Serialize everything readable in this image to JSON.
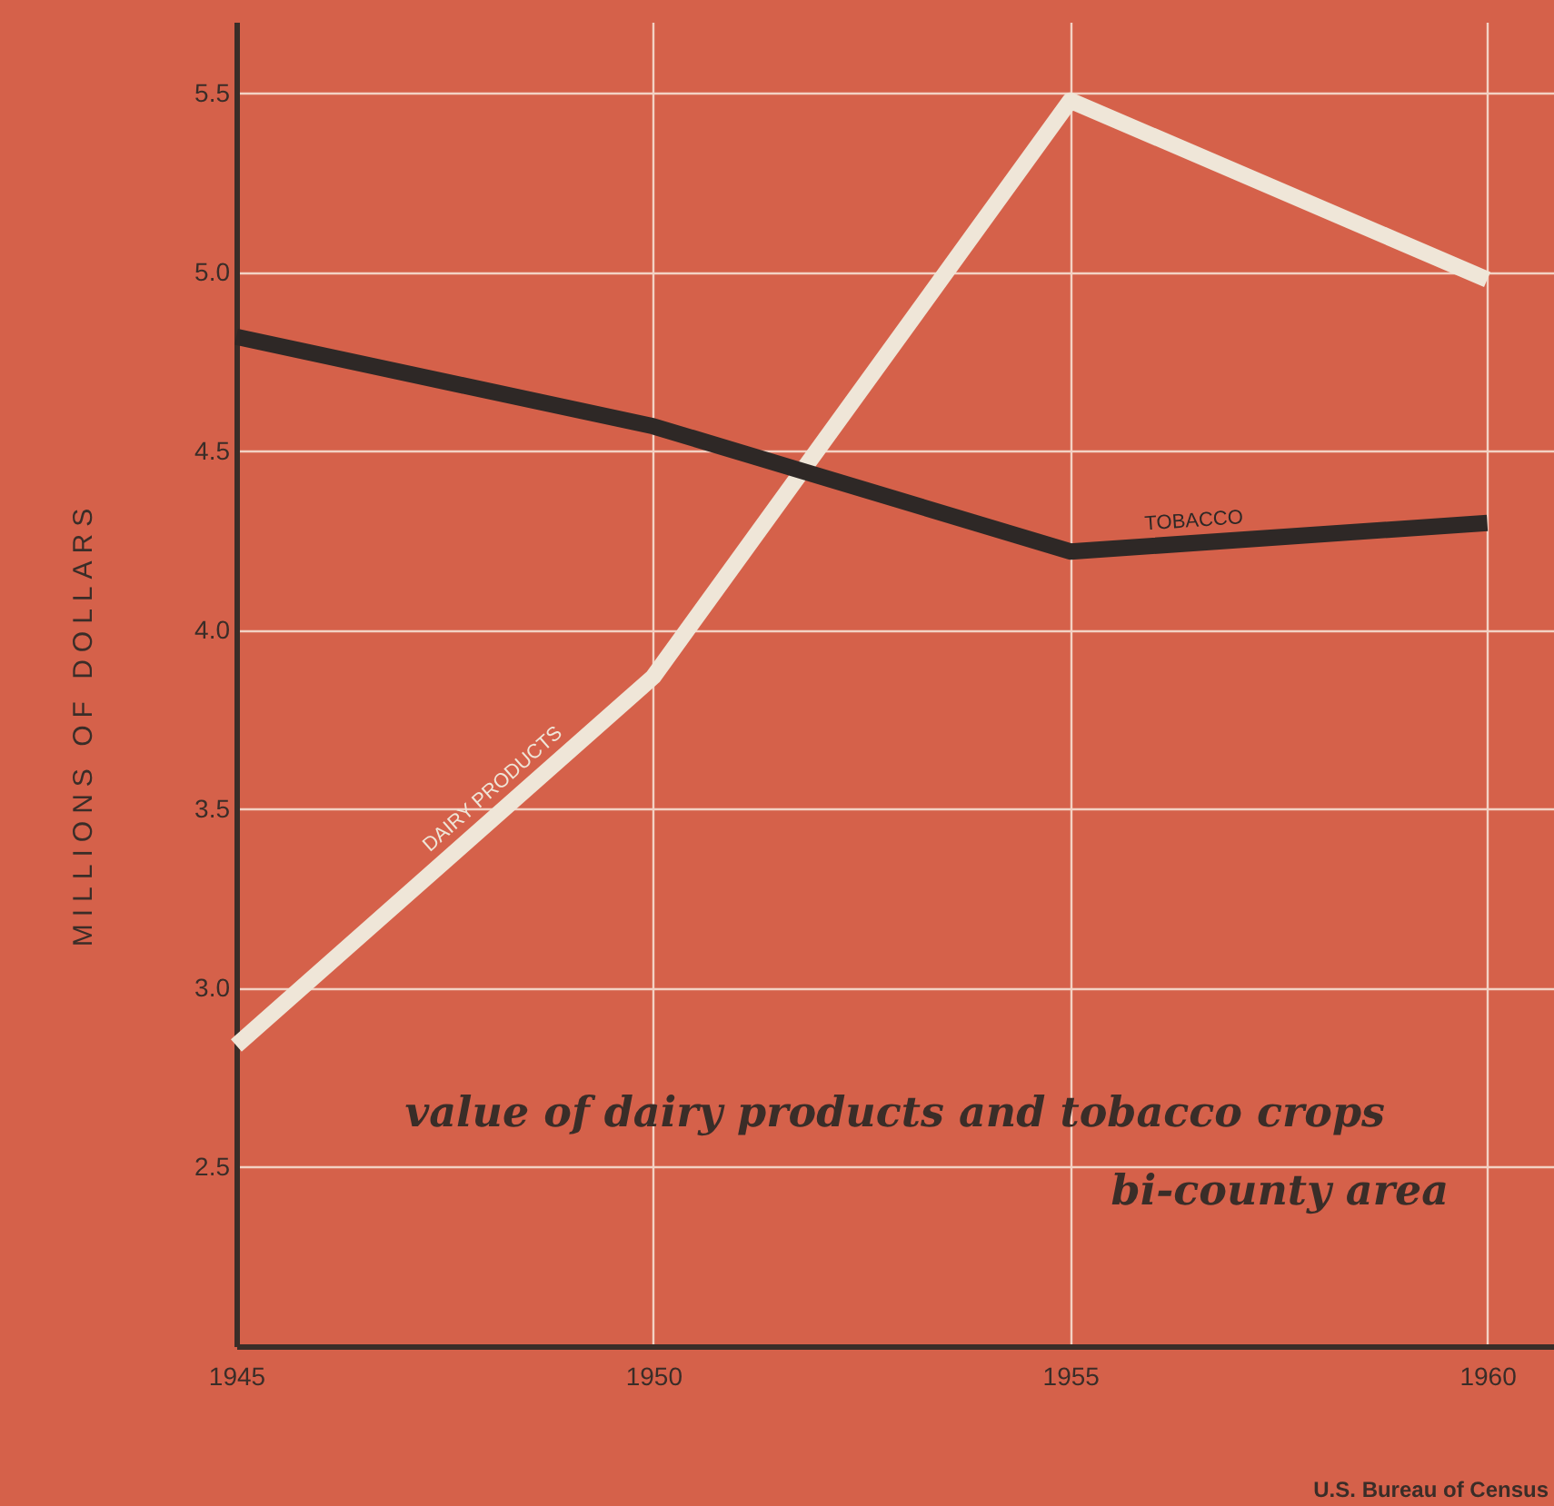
{
  "chart_data": {
    "type": "line",
    "title": "value of dairy products and tobacco crops",
    "subtitle": "bi-county area",
    "ylabel": "MILLIONS OF DOLLARS",
    "annotations": [
      "U.S. Bureau of Census"
    ],
    "x": [
      1945,
      1950,
      1955,
      1960
    ],
    "series": [
      {
        "name": "DAIRY PRODUCTS",
        "color": "#efe6d8",
        "values": [
          2.84,
          3.87,
          5.48,
          4.98
        ]
      },
      {
        "name": "TOBACCO",
        "color": "#2e2826",
        "values": [
          4.82,
          4.57,
          4.22,
          4.3
        ]
      }
    ],
    "xlim": [
      1945,
      1960.8
    ],
    "ylim": [
      2.0,
      5.7
    ],
    "xticks": [
      1945,
      1950,
      1955,
      1960
    ],
    "yticks": [
      2.5,
      {
        "value": 3,
        "label": "3.0"
      },
      3.5,
      {
        "value": 4,
        "label": "4.0"
      },
      4.5,
      {
        "value": 5,
        "label": "5.0"
      },
      5.5
    ],
    "grid": true,
    "marker": "none",
    "line_style": "solid"
  }
}
